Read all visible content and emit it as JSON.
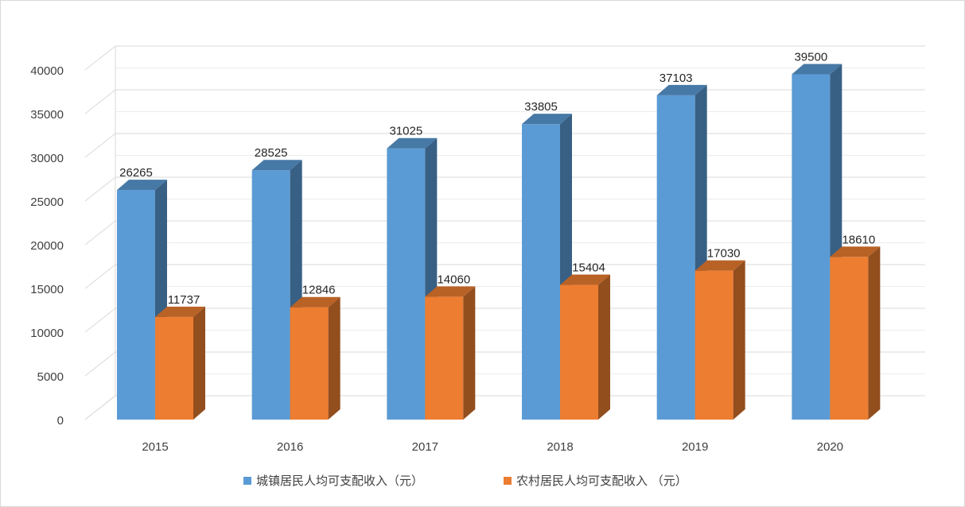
{
  "chart_data": {
    "type": "bar",
    "style": "3d-clustered-column",
    "categories": [
      "2015",
      "2016",
      "2017",
      "2018",
      "2019",
      "2020"
    ],
    "series": [
      {
        "name": "城镇居民人均可支配收入（元）",
        "values": [
          26265,
          28525,
          31025,
          33805,
          37103,
          39500
        ],
        "color": "#5b9bd5"
      },
      {
        "name": "农村居民人均可支配收入 （元）",
        "values": [
          11737,
          12846,
          14060,
          15404,
          17030,
          18610
        ],
        "color": "#ed7d31"
      }
    ],
    "title": "",
    "xlabel": "",
    "ylabel": "",
    "ylim": [
      0,
      40000
    ],
    "ytick_step": 5000,
    "grid": true,
    "legend": "bottom"
  }
}
